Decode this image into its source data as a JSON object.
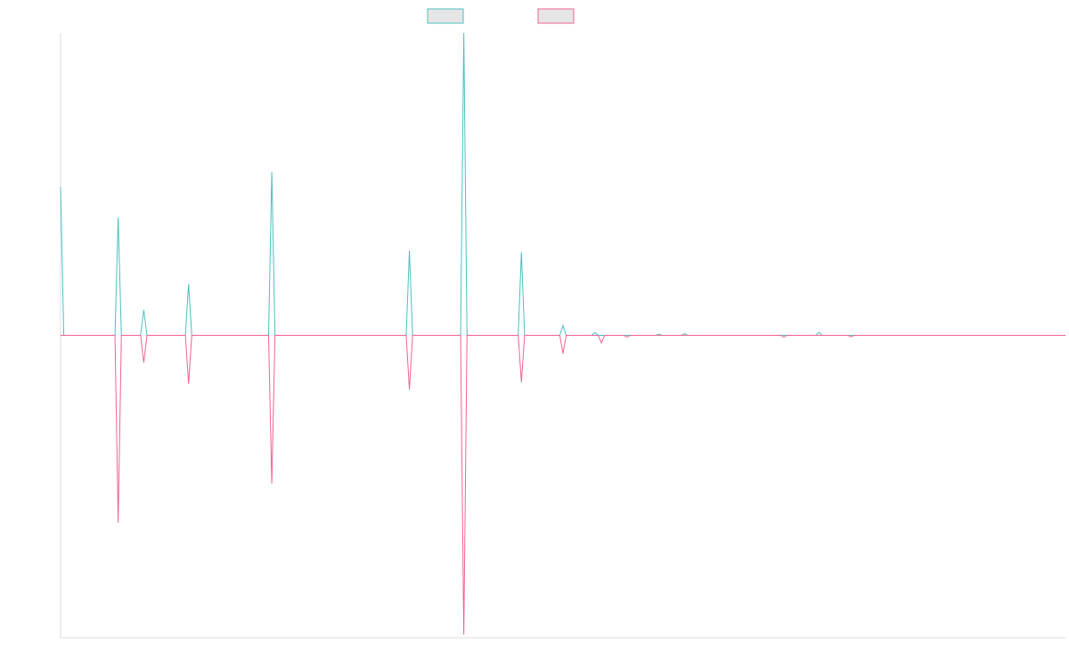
{
  "chart_data": {
    "type": "line",
    "title": "",
    "xlabel": "",
    "ylabel": "",
    "ylim": [
      -100,
      100
    ],
    "grid": false,
    "legend_position": "top-center",
    "series": [
      {
        "key": "teal",
        "color": "#4bc0c0",
        "fill": "#e6e6e6",
        "points": [
          [
            0,
            49
          ],
          [
            1,
            0
          ],
          [
            17,
            0
          ],
          [
            18,
            39
          ],
          [
            19,
            0
          ],
          [
            25,
            0
          ],
          [
            26,
            8.4
          ],
          [
            27,
            0
          ],
          [
            39,
            0
          ],
          [
            40,
            17
          ],
          [
            41,
            0
          ],
          [
            65,
            0
          ],
          [
            66,
            54
          ],
          [
            67,
            0
          ],
          [
            108,
            0
          ],
          [
            109,
            28
          ],
          [
            110,
            0
          ],
          [
            125,
            0
          ],
          [
            126,
            100
          ],
          [
            127,
            0
          ],
          [
            143,
            0
          ],
          [
            144,
            27.5
          ],
          [
            145,
            0
          ],
          [
            156,
            0
          ],
          [
            157,
            3.3
          ],
          [
            158,
            0
          ],
          [
            166,
            0
          ],
          [
            167,
            0.9
          ],
          [
            168,
            0
          ],
          [
            186,
            0
          ],
          [
            187,
            0.4
          ],
          [
            188,
            0
          ],
          [
            194,
            0
          ],
          [
            195,
            0.6
          ],
          [
            196,
            0
          ],
          [
            236,
            0
          ],
          [
            237,
            1.0
          ],
          [
            238,
            0
          ],
          [
            314,
            0
          ]
        ]
      },
      {
        "key": "pink",
        "color": "#f06292",
        "fill": "#e6e6e6",
        "points": [
          [
            0,
            0
          ],
          [
            17,
            0
          ],
          [
            18,
            -62
          ],
          [
            19,
            0
          ],
          [
            25,
            0
          ],
          [
            26,
            -9
          ],
          [
            27,
            0
          ],
          [
            39,
            0
          ],
          [
            40,
            -16
          ],
          [
            41,
            0
          ],
          [
            65,
            0
          ],
          [
            66,
            -49
          ],
          [
            67,
            0
          ],
          [
            108,
            0
          ],
          [
            109,
            -18
          ],
          [
            110,
            0
          ],
          [
            125,
            0
          ],
          [
            126,
            -99
          ],
          [
            127,
            0
          ],
          [
            143,
            0
          ],
          [
            144,
            -15.5
          ],
          [
            145,
            0
          ],
          [
            156,
            0
          ],
          [
            157,
            -6
          ],
          [
            158,
            0
          ],
          [
            168,
            0
          ],
          [
            169,
            -2.5
          ],
          [
            170,
            0
          ],
          [
            176,
            0
          ],
          [
            177,
            -0.6
          ],
          [
            178,
            0
          ],
          [
            225,
            0
          ],
          [
            226,
            -0.6
          ],
          [
            227,
            0
          ],
          [
            246,
            0
          ],
          [
            247,
            -0.5
          ],
          [
            248,
            0
          ],
          [
            314,
            0
          ]
        ]
      }
    ],
    "x_range": [
      0,
      314
    ]
  }
}
